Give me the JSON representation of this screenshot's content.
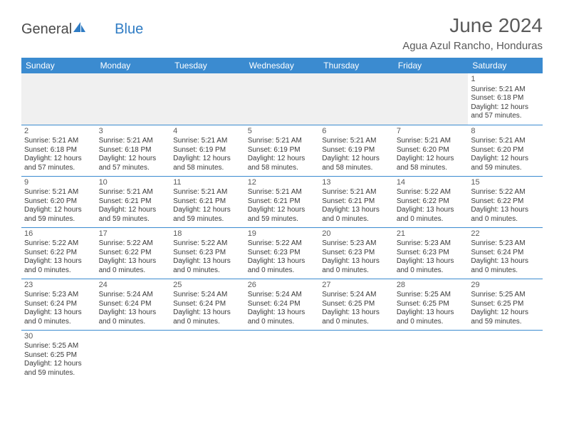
{
  "logo": {
    "text1": "General",
    "text2": "Blue"
  },
  "title": "June 2024",
  "subtitle": "Agua Azul Rancho, Honduras",
  "colors": {
    "header_bg": "#3b8bd0",
    "header_text": "#ffffff",
    "text": "#3a3a3a",
    "title_text": "#5a5a5a",
    "empty_bg": "#f0f0f0",
    "row_border": "#3b8bd0"
  },
  "weekdays": [
    "Sunday",
    "Monday",
    "Tuesday",
    "Wednesday",
    "Thursday",
    "Friday",
    "Saturday"
  ],
  "weeks": [
    [
      null,
      null,
      null,
      null,
      null,
      null,
      {
        "n": "1",
        "sr": "5:21 AM",
        "ss": "6:18 PM",
        "dl": "12 hours and 57 minutes."
      }
    ],
    [
      {
        "n": "2",
        "sr": "5:21 AM",
        "ss": "6:18 PM",
        "dl": "12 hours and 57 minutes."
      },
      {
        "n": "3",
        "sr": "5:21 AM",
        "ss": "6:18 PM",
        "dl": "12 hours and 57 minutes."
      },
      {
        "n": "4",
        "sr": "5:21 AM",
        "ss": "6:19 PM",
        "dl": "12 hours and 58 minutes."
      },
      {
        "n": "5",
        "sr": "5:21 AM",
        "ss": "6:19 PM",
        "dl": "12 hours and 58 minutes."
      },
      {
        "n": "6",
        "sr": "5:21 AM",
        "ss": "6:19 PM",
        "dl": "12 hours and 58 minutes."
      },
      {
        "n": "7",
        "sr": "5:21 AM",
        "ss": "6:20 PM",
        "dl": "12 hours and 58 minutes."
      },
      {
        "n": "8",
        "sr": "5:21 AM",
        "ss": "6:20 PM",
        "dl": "12 hours and 59 minutes."
      }
    ],
    [
      {
        "n": "9",
        "sr": "5:21 AM",
        "ss": "6:20 PM",
        "dl": "12 hours and 59 minutes."
      },
      {
        "n": "10",
        "sr": "5:21 AM",
        "ss": "6:21 PM",
        "dl": "12 hours and 59 minutes."
      },
      {
        "n": "11",
        "sr": "5:21 AM",
        "ss": "6:21 PM",
        "dl": "12 hours and 59 minutes."
      },
      {
        "n": "12",
        "sr": "5:21 AM",
        "ss": "6:21 PM",
        "dl": "12 hours and 59 minutes."
      },
      {
        "n": "13",
        "sr": "5:21 AM",
        "ss": "6:21 PM",
        "dl": "13 hours and 0 minutes."
      },
      {
        "n": "14",
        "sr": "5:22 AM",
        "ss": "6:22 PM",
        "dl": "13 hours and 0 minutes."
      },
      {
        "n": "15",
        "sr": "5:22 AM",
        "ss": "6:22 PM",
        "dl": "13 hours and 0 minutes."
      }
    ],
    [
      {
        "n": "16",
        "sr": "5:22 AM",
        "ss": "6:22 PM",
        "dl": "13 hours and 0 minutes."
      },
      {
        "n": "17",
        "sr": "5:22 AM",
        "ss": "6:22 PM",
        "dl": "13 hours and 0 minutes."
      },
      {
        "n": "18",
        "sr": "5:22 AM",
        "ss": "6:23 PM",
        "dl": "13 hours and 0 minutes."
      },
      {
        "n": "19",
        "sr": "5:22 AM",
        "ss": "6:23 PM",
        "dl": "13 hours and 0 minutes."
      },
      {
        "n": "20",
        "sr": "5:23 AM",
        "ss": "6:23 PM",
        "dl": "13 hours and 0 minutes."
      },
      {
        "n": "21",
        "sr": "5:23 AM",
        "ss": "6:23 PM",
        "dl": "13 hours and 0 minutes."
      },
      {
        "n": "22",
        "sr": "5:23 AM",
        "ss": "6:24 PM",
        "dl": "13 hours and 0 minutes."
      }
    ],
    [
      {
        "n": "23",
        "sr": "5:23 AM",
        "ss": "6:24 PM",
        "dl": "13 hours and 0 minutes."
      },
      {
        "n": "24",
        "sr": "5:24 AM",
        "ss": "6:24 PM",
        "dl": "13 hours and 0 minutes."
      },
      {
        "n": "25",
        "sr": "5:24 AM",
        "ss": "6:24 PM",
        "dl": "13 hours and 0 minutes."
      },
      {
        "n": "26",
        "sr": "5:24 AM",
        "ss": "6:24 PM",
        "dl": "13 hours and 0 minutes."
      },
      {
        "n": "27",
        "sr": "5:24 AM",
        "ss": "6:25 PM",
        "dl": "13 hours and 0 minutes."
      },
      {
        "n": "28",
        "sr": "5:25 AM",
        "ss": "6:25 PM",
        "dl": "13 hours and 0 minutes."
      },
      {
        "n": "29",
        "sr": "5:25 AM",
        "ss": "6:25 PM",
        "dl": "12 hours and 59 minutes."
      }
    ],
    [
      {
        "n": "30",
        "sr": "5:25 AM",
        "ss": "6:25 PM",
        "dl": "12 hours and 59 minutes."
      },
      null,
      null,
      null,
      null,
      null,
      null
    ]
  ],
  "labels": {
    "sunrise": "Sunrise:",
    "sunset": "Sunset:",
    "daylight": "Daylight:"
  }
}
